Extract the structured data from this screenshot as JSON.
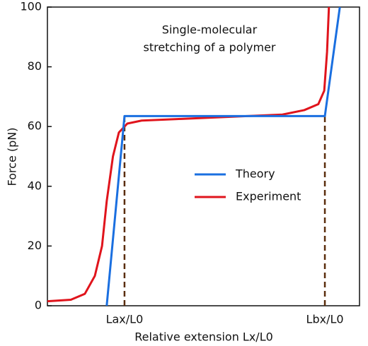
{
  "chart_data": {
    "type": "line",
    "annotation": [
      "Single-molecular",
      "stretching of a polymer"
    ],
    "x_label": "Relative extension Lx/L0",
    "y_label": "Force (pN)",
    "xlim": [
      0,
      100
    ],
    "xticks": [
      {
        "value": 24.7,
        "label": "Lax/L0"
      },
      {
        "value": 88.9,
        "label": "Lbx/L0"
      }
    ],
    "ylim": [
      0,
      100
    ],
    "yticks": [
      0,
      20,
      40,
      60,
      80,
      100
    ],
    "legend": "center-right",
    "series": [
      {
        "name": "Theory",
        "color": "#1a6fe0",
        "x": [
          19,
          24.7,
          88.9,
          93.7
        ],
        "values": [
          0,
          63.5,
          63.5,
          100
        ]
      },
      {
        "name": "Experiment",
        "color": "#e0141c",
        "x": [
          0,
          7.5,
          12,
          15.2,
          17.5,
          19,
          21,
          22.9,
          25.6,
          30.2,
          41.5,
          52.8,
          64,
          75.3,
          82.3,
          86.8,
          88.7,
          89.6,
          90.2
        ],
        "values": [
          1.5,
          2,
          4,
          10,
          20,
          35,
          50,
          58,
          61,
          62,
          62.5,
          63,
          63.5,
          64,
          65.5,
          67.5,
          72,
          85,
          100
        ]
      }
    ]
  }
}
